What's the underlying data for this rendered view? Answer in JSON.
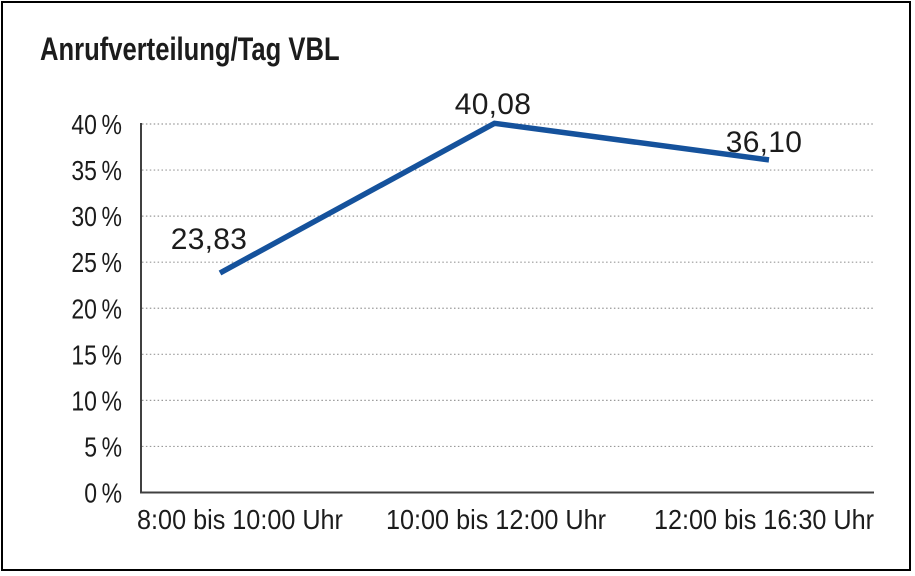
{
  "page": {
    "background": "#FFFFFF",
    "border_color": "#000000"
  },
  "chart_data": {
    "type": "line",
    "title": "Anrufverteilung/Tag VBL",
    "categories": [
      "8:00 bis 10:00 Uhr",
      "10:00 bis 12:00 Uhr",
      "12:00 bis 16:30 Uhr"
    ],
    "values": [
      23.83,
      40.08,
      36.1
    ],
    "point_labels": [
      "23,83",
      "40,08",
      "36,10"
    ],
    "ytick_labels": [
      "0 %",
      "5 %",
      "10 %",
      "15 %",
      "20 %",
      "25 %",
      "30 %",
      "35 %",
      "40 %"
    ],
    "ylim": [
      0,
      40
    ],
    "ytick_step": 5,
    "xlabel": "",
    "ylabel": "",
    "grid": "horizontal-dotted",
    "legend": "none",
    "series_color": "#15529C",
    "grid_color": "#999999",
    "axis_color": "#404040",
    "text_color": "#1C1C1C"
  }
}
